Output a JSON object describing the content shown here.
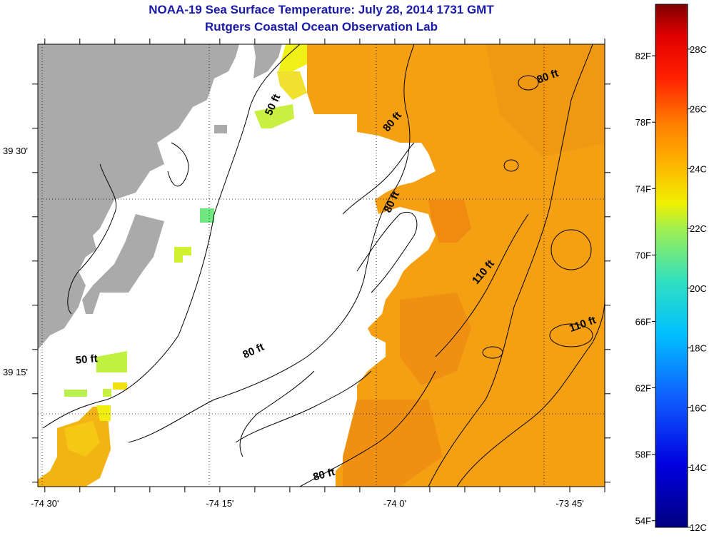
{
  "header": {
    "title": "NOAA-19 Sea Surface Temperature:  July 28, 2014 1731 GMT",
    "subtitle": "Rutgers Coastal Ocean Observation Lab"
  },
  "axes": {
    "x_ticks": [
      {
        "lon": -74.5,
        "label": "-74 30'"
      },
      {
        "lon": -74.25,
        "label": "-74 15'"
      },
      {
        "lon": -74.0,
        "label": "-74 0'"
      },
      {
        "lon": -73.75,
        "label": "-73 45'"
      }
    ],
    "y_ticks": [
      {
        "lat": 39.5,
        "label": "39 30'"
      },
      {
        "lat": 39.25,
        "label": "39 15'"
      }
    ],
    "lon_range": [
      -74.51,
      -73.7
    ],
    "lat_range": [
      39.12,
      39.62
    ],
    "grid": true
  },
  "contour_labels": [
    {
      "text": "50 ft",
      "lon": -74.17,
      "lat": 39.55,
      "angle": -65
    },
    {
      "text": "50 ft",
      "lon": -74.44,
      "lat": 39.26,
      "angle": -5
    },
    {
      "text": "80 ft",
      "lon": -74.0,
      "lat": 39.53,
      "angle": -50
    },
    {
      "text": "80 ft",
      "lon": -73.78,
      "lat": 39.58,
      "angle": -20
    },
    {
      "text": "80 ft",
      "lon": -74.0,
      "lat": 39.44,
      "angle": -65
    },
    {
      "text": "80 ft",
      "lon": -74.2,
      "lat": 39.27,
      "angle": -25
    },
    {
      "text": "80 ft",
      "lon": -74.1,
      "lat": 39.13,
      "angle": -15
    },
    {
      "text": "110 ft",
      "lon": -73.87,
      "lat": 39.36,
      "angle": -50
    },
    {
      "text": "110 ft",
      "lon": -73.73,
      "lat": 39.3,
      "angle": -20
    }
  ],
  "colorbar": {
    "fahrenheit_labels": [
      "82F",
      "78F",
      "74F",
      "70F",
      "66F",
      "62F",
      "58F",
      "54F"
    ],
    "celsius_labels": [
      "28C",
      "26C",
      "24C",
      "22C",
      "20C",
      "18C",
      "16C",
      "14C",
      "12C"
    ],
    "range_c": [
      12,
      29.5
    ]
  },
  "colors": {
    "title": "#1a1aa8",
    "land": "#aaaaaa",
    "cloud": "#ffffff",
    "warm_water": "#f5a010",
    "shelf_water": "#f0b010"
  }
}
